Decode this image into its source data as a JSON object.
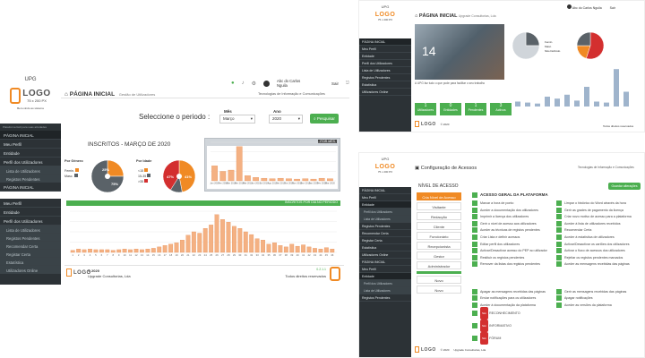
{
  "main": {
    "upg_label": "UPG",
    "logo": "LOGO",
    "logo_size": "75 x 200 PX",
    "sidebar_caption": "Bem-vindo ao sistema",
    "sidebar_caption2": "Plataforma fácil para suas atividades",
    "sidebar_items": [
      "PÁGINA INICIAL",
      "Meu Perfil",
      "Entidade",
      "Perfil dos Utilizadores",
      "Lista de Utilizadores",
      "Registos Pendentes",
      "PÁGINA INICIAL",
      "",
      "Meu Perfil",
      "Entidade",
      "Perfil dos Utilizadores",
      "Lista de Utilizadores",
      "Registos Pendentes",
      "Recomendar Certa",
      "Registar Certa",
      "Estatística",
      "Utilizadores Online"
    ],
    "breadcrumb_title": "PÁGINA INICIAL",
    "breadcrumb_sub": "Gestão de Utilizadores",
    "user_name": "Abc do Carlos Nguila",
    "sair": "Sair",
    "top_link": "Tecnologias de Informação e Comunicações",
    "select_label": "Seleccione o periodo :",
    "mes_label": "Mês",
    "ano_label": "Ano",
    "mes_value": "Março",
    "ano_value": "2020",
    "pesquisar": "Pesquisar",
    "inscritos_title": "INSCRITOS - MARÇO DE 2020",
    "por_genero": "Por Género",
    "por_idade": "Por Idade",
    "genero_legend": [
      "Femin.",
      "Masc."
    ],
    "idade_legend": [
      "<15",
      "15-35",
      ">35"
    ],
    "pie1_labels": [
      "25%",
      "75%"
    ],
    "pie2_labels": [
      "47%",
      "41%"
    ],
    "por_mes_label": "POR MÊS",
    "por_dia_label": "INSCRITOS POR DIA NO PERIODO",
    "copyright": "© 2020",
    "company": "Upgrade Consultorias, Lda",
    "rights": "Todos direitos reservados",
    "version": "0.2.1.1"
  },
  "chart_data": [
    {
      "type": "pie",
      "labels": [
        "Femin.",
        "Masc."
      ],
      "values": [
        25,
        75
      ],
      "colors": [
        "#f08a24",
        "#5a6268"
      ]
    },
    {
      "type": "pie",
      "labels": [
        "<15",
        "15-35",
        ">35"
      ],
      "values": [
        47,
        12,
        41
      ],
      "colors": [
        "#f08a24",
        "#5a6268",
        "#d32f2f"
      ]
    },
    {
      "type": "bar",
      "categories": [
        "Jan 2019",
        "Fev 2019",
        "Mar 2019",
        "Abr 2019",
        "Mai 2019",
        "Jun 2019",
        "Jul 2019",
        "Ago 2019",
        "Set 2019",
        "Out 2019",
        "Nov 2019",
        "Dez 2019",
        "Jan 2020",
        "Fev 2020",
        "Mar 2020"
      ],
      "values": [
        35,
        22,
        25,
        80,
        12,
        8,
        6,
        5,
        6,
        5,
        4,
        5,
        4,
        6,
        5
      ],
      "color": "#f4b183"
    },
    {
      "type": "bar",
      "categories": [
        "1",
        "2",
        "3",
        "4",
        "5",
        "6",
        "7",
        "8",
        "9",
        "10",
        "11",
        "12",
        "13",
        "14",
        "15",
        "16",
        "17",
        "18",
        "19",
        "20",
        "21",
        "22",
        "23",
        "24",
        "25",
        "26",
        "27",
        "28",
        "29",
        "30",
        "31",
        "32",
        "33",
        "34",
        "35",
        "36",
        "37",
        "38",
        "39",
        "40",
        "41",
        "42",
        "43",
        "44",
        "45",
        "46"
      ],
      "values": [
        3,
        5,
        4,
        5,
        4,
        4,
        4,
        3,
        4,
        5,
        4,
        5,
        4,
        5,
        6,
        8,
        10,
        12,
        14,
        18,
        25,
        30,
        28,
        35,
        40,
        55,
        48,
        44,
        38,
        35,
        30,
        26,
        20,
        18,
        12,
        14,
        10,
        8,
        12,
        9,
        11,
        8,
        6,
        5,
        7,
        5
      ],
      "color": "#f4b183"
    }
  ],
  "right_top": {
    "title": "PÁGINA INICIAL",
    "sub": "Upgrade Consultorias, Lda",
    "user_name": "Abc do Carlos Nguila",
    "sair": "Sair",
    "photo_caption": "A UPG faz tudo o que pode para facilitar o seu trabalho",
    "lists": [
      "Femin.",
      "Masc.",
      "Não Definido"
    ],
    "footer": "Todos direitos reservados",
    "tile_labels": [
      "1",
      "0",
      "1",
      "3"
    ],
    "tile_subs": [
      "Utilizadores",
      "Entidades",
      "Pendentes",
      "Activos"
    ]
  },
  "right_bottom": {
    "title": "Configuração de Acessos",
    "top_link": "Tecnologias de Informação e Comunicações",
    "nivel_title": "NÍVEL DE ACESSO",
    "acesso_title": "ACESSO GERAL DA PLATAFORMA",
    "salvar": "Guardar alterações",
    "levels": [
      "Cria Nível de Acesso",
      "Visitante",
      "Redacção",
      "Cliente",
      "Funcionário",
      "Recepcionista",
      "Gestor",
      "Administrador",
      "",
      "Novo",
      "Novo"
    ],
    "perms_left": [
      "Marcar a hora de ponto",
      "Aceder a documentação dos utilizadores",
      "Imprimir a licença dos utilizadores",
      "Gerir o nivel de acesso aos utilizadores",
      "Aceder as técnicas de registos pendentes",
      "Criar Lista e definir acessos",
      "Editar perfil dos utilizadores",
      "Activar/Desactivar acesso do PEP ao utilizador",
      "Restituir os registos pendentes",
      "Remover da listas dos registos pendentes",
      "",
      "",
      "",
      "Apagar as mensagens recebidas das páginas",
      "Enviar notificações para os utilizadores",
      "Aceder à documentação da plataforma"
    ],
    "perms_right": [
      "Limpar o histórico do Word através da hora",
      "Gerir as grades de pagamento da licença",
      "Criar novo motivo de acesso para a plataforma",
      "Aceder à lista de utilizadores recebidos",
      "Recomendar Certa",
      "Aceder à estatística de utilizadores",
      "Activar/Desactivar os cartões dos utilizadores",
      "Activar o fluxo de acessos dos utilizadores",
      "Rejeitar os registos pendentes marcados",
      "Aceder as mensagens recebidas das páginas",
      "",
      "",
      "",
      "Gerir as mensagens recebidas das páginas",
      "Apagar notificações",
      "Aceder as versões da plataforma"
    ],
    "sections": [
      "RECONHECIMENTO",
      "INFORMATIVO",
      "FÓRUM"
    ],
    "footer_company": "Upgrade Consultorias, Lda",
    "copyright": "© 2020"
  }
}
